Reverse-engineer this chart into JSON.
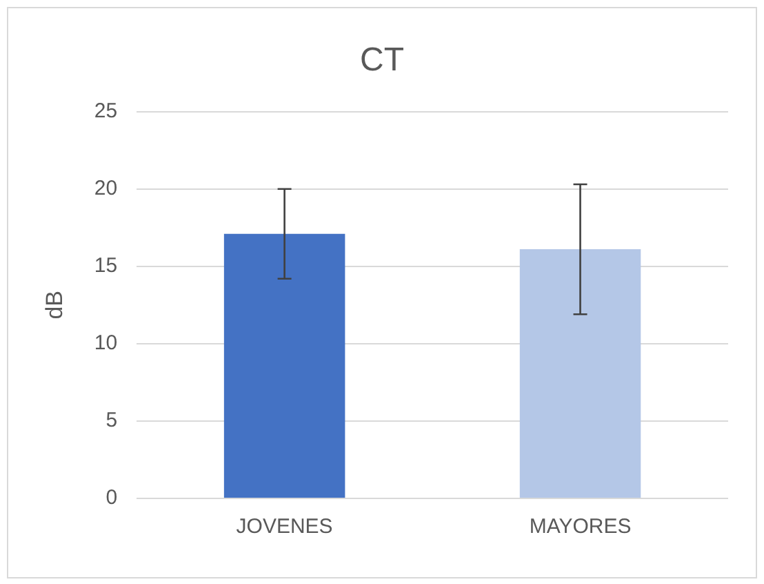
{
  "chart_data": {
    "type": "bar",
    "title": "CT",
    "ylabel": "dB",
    "categories": [
      "JOVENES",
      "MAYORES"
    ],
    "values": [
      17.1,
      16.1
    ],
    "colors": [
      "#4472c4",
      "#b4c7e7"
    ],
    "errors": [
      2.9,
      4.2
    ],
    "ylim": [
      0,
      25
    ],
    "yticks": [
      0,
      5,
      10,
      15,
      20,
      25
    ],
    "grid": "y",
    "legend": false
  }
}
